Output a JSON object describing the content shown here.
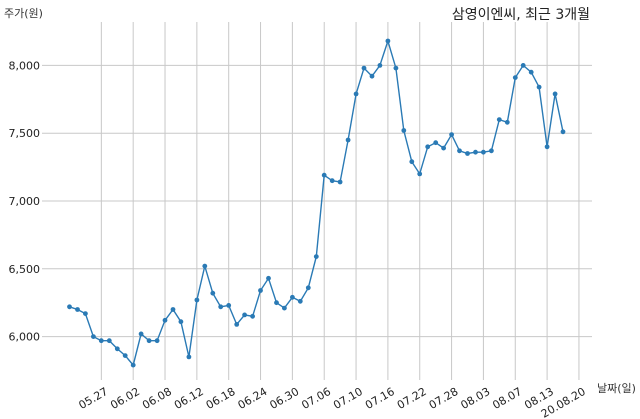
{
  "chart_data": {
    "type": "line",
    "title": "삼영이엔씨, 최근 3개월",
    "ylabel": "주가(원)",
    "xlabel": "날짜(일)",
    "ylim": [
      5680,
      8320
    ],
    "yticks": [
      6000,
      6500,
      7000,
      7500,
      8000
    ],
    "ytick_labels": [
      "6,000",
      "6,500",
      "7,000",
      "7,500",
      "8,000"
    ],
    "xtick_labels": [
      "05.27",
      "06.02",
      "06.08",
      "06.12",
      "06.18",
      "06.24",
      "06.30",
      "07.06",
      "07.10",
      "07.16",
      "07.22",
      "07.28",
      "08.03",
      "08.07",
      "08.13",
      "20.08.20"
    ],
    "xtick_index": [
      4,
      8,
      12,
      16,
      20,
      24,
      28,
      32,
      36,
      40,
      44,
      48,
      52,
      56,
      60,
      64
    ],
    "grid": true,
    "color": "#2a7ab5",
    "series": [
      {
        "values": [
          6220,
          6200,
          6170,
          6000,
          5970,
          5970,
          5910,
          5860,
          5790,
          6020,
          5970,
          5970,
          6120,
          6200,
          6110,
          5850,
          6270,
          6520,
          6320,
          6220,
          6230,
          6090,
          6160,
          6150,
          6340,
          6430,
          6250,
          6210,
          6290,
          6260,
          6360,
          6590,
          7190,
          7150,
          7140,
          7450,
          7790,
          7980,
          7920,
          8000,
          8180,
          7980,
          7520,
          7290,
          7200,
          7400,
          7430,
          7390,
          7490,
          7370,
          7350,
          7360,
          7360,
          7370,
          7600,
          7580,
          7910,
          8000,
          7950,
          7840,
          7400,
          7790,
          7510
        ]
      }
    ]
  }
}
